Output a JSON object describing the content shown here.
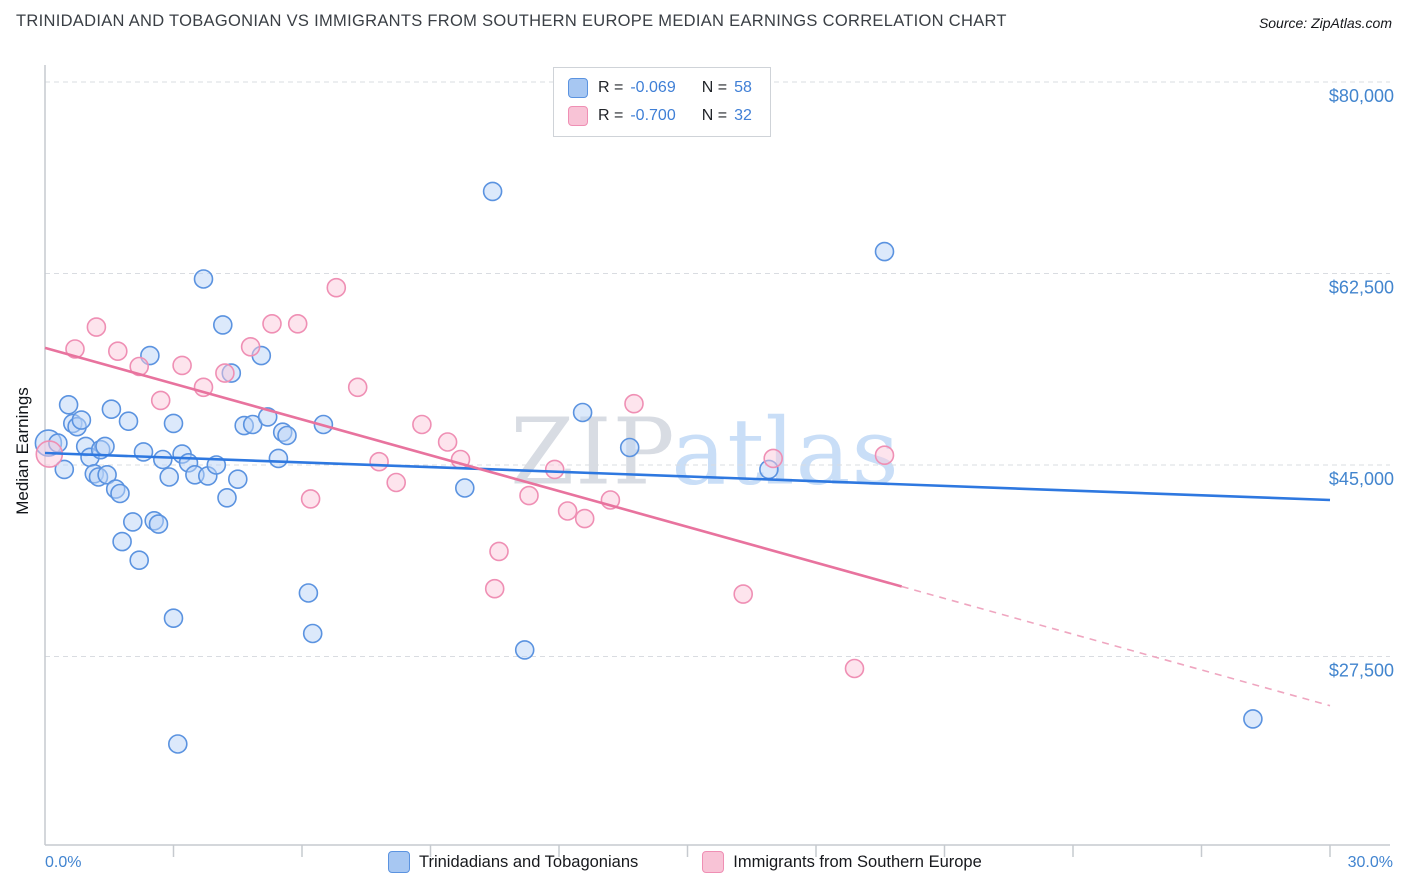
{
  "header": {
    "title": "TRINIDADIAN AND TOBAGONIAN VS IMMIGRANTS FROM SOUTHERN EUROPE MEDIAN EARNINGS CORRELATION CHART",
    "source": "Source: ZipAtlas.com"
  },
  "watermark": {
    "zip": "ZIP",
    "atlas": "atlas"
  },
  "axes": {
    "y_label": "Median Earnings",
    "x_min_label": "0.0%",
    "x_max_label": "30.0%"
  },
  "legend_box": {
    "rows": [
      {
        "r_label": "R =",
        "r_value": "-0.069",
        "n_label": "N =",
        "n_value": "58"
      },
      {
        "r_label": "R =",
        "r_value": "-0.700",
        "n_label": "N =",
        "n_value": "32"
      }
    ]
  },
  "chart_data": {
    "type": "scatter",
    "title": "Trinidadian and Tobagonian vs Immigrants from Southern Europe Median Earnings Correlation Chart",
    "xlabel": "",
    "ylabel": "Median Earnings",
    "x_unit": "percent",
    "y_unit": "USD",
    "xlim": [
      0,
      30
    ],
    "ylim": [
      10300,
      81500
    ],
    "grid": "horizontal-dashed",
    "legend_position": "top-center",
    "x_ticks_pct": [
      3,
      6,
      9,
      12,
      15,
      18,
      21,
      24,
      27,
      30
    ],
    "y_gridlines": [
      {
        "value": 80000,
        "label": "$80,000"
      },
      {
        "value": 62500,
        "label": "$62,500"
      },
      {
        "value": 45000,
        "label": "$45,000"
      },
      {
        "value": 27500,
        "label": "$27,500"
      }
    ],
    "series": [
      {
        "name": "Trinidadians and Tobagonians",
        "short": "blue",
        "R": -0.069,
        "N": 58,
        "color_stroke": "#5b93e0",
        "color_fill": "#b9d4f7",
        "color_swatch": "#a7c7f2",
        "points": [
          [
            0.08,
            47000,
            13
          ],
          [
            0.3,
            47000
          ],
          [
            0.45,
            44600
          ],
          [
            0.55,
            50500
          ],
          [
            0.65,
            48800
          ],
          [
            0.75,
            48500
          ],
          [
            0.85,
            49100
          ],
          [
            0.95,
            46700
          ],
          [
            1.05,
            45700
          ],
          [
            1.15,
            44200
          ],
          [
            1.25,
            43900
          ],
          [
            1.3,
            46400
          ],
          [
            1.4,
            46700
          ],
          [
            1.45,
            44100
          ],
          [
            1.55,
            50100
          ],
          [
            1.65,
            42800
          ],
          [
            1.75,
            42400
          ],
          [
            1.8,
            38000
          ],
          [
            1.95,
            49000
          ],
          [
            2.05,
            39800
          ],
          [
            2.2,
            36300
          ],
          [
            2.3,
            46200
          ],
          [
            2.45,
            55000
          ],
          [
            2.55,
            39900
          ],
          [
            2.65,
            39600
          ],
          [
            2.75,
            45500
          ],
          [
            2.9,
            43900
          ],
          [
            3.0,
            48800
          ],
          [
            3.0,
            31000
          ],
          [
            3.1,
            19500
          ],
          [
            3.2,
            46000
          ],
          [
            3.35,
            45200
          ],
          [
            3.5,
            44100
          ],
          [
            3.7,
            62000
          ],
          [
            3.8,
            44000
          ],
          [
            4.0,
            45000
          ],
          [
            4.15,
            57800
          ],
          [
            4.25,
            42000
          ],
          [
            4.35,
            53400
          ],
          [
            4.5,
            43700
          ],
          [
            4.65,
            48600
          ],
          [
            4.85,
            48700
          ],
          [
            5.05,
            55000
          ],
          [
            5.2,
            49400
          ],
          [
            5.45,
            45600
          ],
          [
            5.55,
            48000
          ],
          [
            5.65,
            47700
          ],
          [
            6.15,
            33300
          ],
          [
            6.25,
            29600
          ],
          [
            6.5,
            48700
          ],
          [
            9.8,
            42900
          ],
          [
            10.45,
            70000
          ],
          [
            11.2,
            28100
          ],
          [
            12.55,
            49800
          ],
          [
            13.65,
            46600
          ],
          [
            16.9,
            44600
          ],
          [
            19.6,
            64500
          ],
          [
            28.2,
            21800
          ]
        ]
      },
      {
        "name": "Immigrants from Southern Europe",
        "short": "pink",
        "R": -0.7,
        "N": 32,
        "color_stroke": "#ef8fb4",
        "color_fill": "#fbcadb",
        "color_swatch": "#f8c3d6",
        "points": [
          [
            0.1,
            46000,
            13
          ],
          [
            0.7,
            55600
          ],
          [
            1.2,
            57600
          ],
          [
            1.7,
            55400
          ],
          [
            2.2,
            54000
          ],
          [
            2.7,
            50900
          ],
          [
            3.2,
            54100
          ],
          [
            3.7,
            52100
          ],
          [
            4.2,
            53400
          ],
          [
            4.8,
            55800
          ],
          [
            5.3,
            57900
          ],
          [
            5.9,
            57900
          ],
          [
            6.8,
            61200
          ],
          [
            7.3,
            52100
          ],
          [
            6.2,
            41900
          ],
          [
            7.8,
            45300
          ],
          [
            8.2,
            43400
          ],
          [
            8.8,
            48700
          ],
          [
            9.4,
            47100
          ],
          [
            9.7,
            45500
          ],
          [
            10.6,
            37100
          ],
          [
            10.5,
            33700
          ],
          [
            11.3,
            42200
          ],
          [
            11.9,
            44600
          ],
          [
            12.2,
            40800
          ],
          [
            12.6,
            40100
          ],
          [
            13.2,
            41800
          ],
          [
            13.75,
            50600
          ],
          [
            16.3,
            33200
          ],
          [
            17.0,
            45600
          ],
          [
            18.9,
            26400
          ],
          [
            19.6,
            45900
          ]
        ]
      }
    ],
    "trend_lines": [
      {
        "series": "blue",
        "x1": 0,
        "y1": 46100,
        "x2": 30,
        "y2": 41800,
        "color": "#2e78e0",
        "dash": null,
        "width": 2.6
      },
      {
        "series": "pink",
        "x1": 0,
        "y1": 55700,
        "x2": 20,
        "y2": 33900,
        "color": "#e8739e",
        "dash": null,
        "width": 2.6
      },
      {
        "series": "pink-extrapolated",
        "x1": 20,
        "y1": 33900,
        "x2": 30,
        "y2": 23000,
        "color": "#efa6c0",
        "dash": "7 6",
        "width": 1.6
      }
    ]
  }
}
